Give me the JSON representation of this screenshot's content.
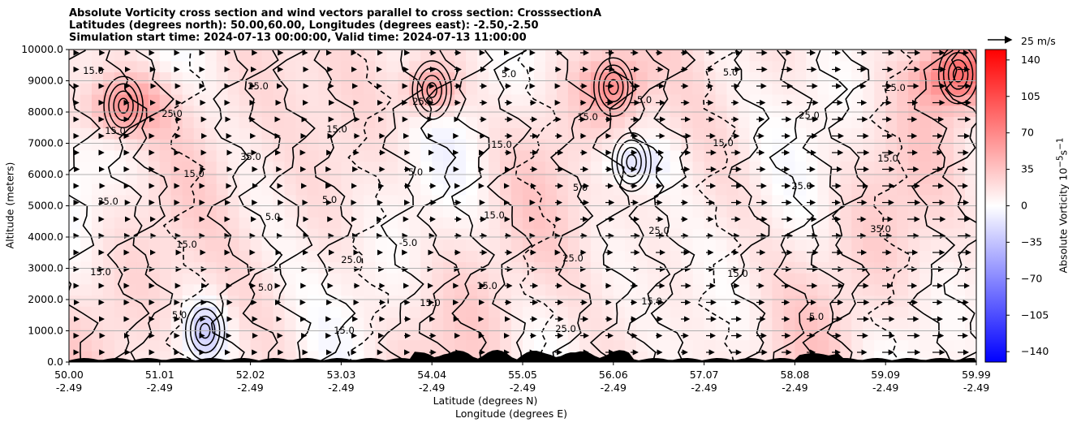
{
  "chart_data": {
    "type": "heatmap",
    "title_lines": [
      "Absolute Vorticity cross section and wind vectors parallel to cross section: CrosssectionA",
      "Latitudes (degrees north): 50.00,60.00, Longitudes (degrees east): -2.50,-2.50",
      "Simulation start time: 2024-07-13 00:00:00, Valid time: 2024-07-13 11:00:00"
    ],
    "ylabel": "Altitude (meters)",
    "xlabel_lines": [
      "Latitude (degrees N)",
      "Longitude (degrees E)"
    ],
    "ylim": [
      0,
      10000
    ],
    "y_ticks": [
      "0.0",
      "1000.0",
      "2000.0",
      "3000.0",
      "4000.0",
      "5000.0",
      "6000.0",
      "7000.0",
      "8000.0",
      "9000.0",
      "10000.0"
    ],
    "x_ticks": [
      {
        "lat": "50.00",
        "lon": "-2.49"
      },
      {
        "lat": "51.01",
        "lon": "-2.49"
      },
      {
        "lat": "52.02",
        "lon": "-2.49"
      },
      {
        "lat": "53.03",
        "lon": "-2.49"
      },
      {
        "lat": "54.04",
        "lon": "-2.49"
      },
      {
        "lat": "55.05",
        "lon": "-2.49"
      },
      {
        "lat": "56.06",
        "lon": "-2.49"
      },
      {
        "lat": "57.07",
        "lon": "-2.49"
      },
      {
        "lat": "58.08",
        "lon": "-2.49"
      },
      {
        "lat": "59.09",
        "lon": "-2.49"
      },
      {
        "lat": "59.99",
        "lon": "-2.49"
      }
    ],
    "grid": "horizontal",
    "colorbar": {
      "label": "Absolute Vorticity 10",
      "label_sup": "−5",
      "label_unit": "s",
      "label_unit_sup": "−1",
      "range": [
        -150,
        150
      ],
      "ticks": [
        "140",
        "105",
        "70",
        "35",
        "0",
        "−35",
        "−70",
        "−105",
        "−140"
      ],
      "tick_values": [
        140,
        105,
        70,
        35,
        0,
        -35,
        -70,
        -105,
        -140
      ],
      "colors": {
        "low": "#0000ff",
        "mid": "#ffffff",
        "high": "#ff0000"
      }
    },
    "vector_key": "25 m/s",
    "contour_labels": [
      "15.0",
      "25.0",
      "35.0",
      "5.0",
      "-5.0",
      "15.0",
      "25.0",
      "5.0",
      "15.0",
      "25.0",
      "35.0",
      "15.0",
      "5.0",
      "25.0",
      "15.0",
      "5.0",
      "15.0",
      "25.0",
      "15.0",
      "5.0",
      "25.0",
      "15.0",
      "35.0",
      "15.0",
      "5.0",
      "15.0",
      "25.0",
      "15.0",
      "5.0",
      "25.0",
      "15.0",
      "5.0",
      "25.0",
      "15.0",
      "15.0",
      "5.0",
      "25.0",
      "15.0",
      "5.0",
      "15.0"
    ]
  }
}
